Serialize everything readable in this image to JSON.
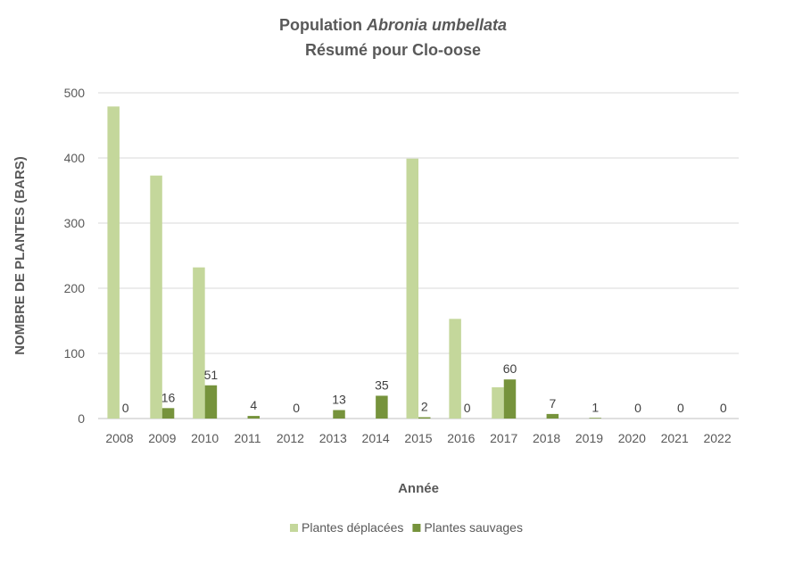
{
  "chart_data": {
    "type": "bar",
    "title_prefix": "Population ",
    "title_species": "Abronia umbellata",
    "subtitle": "Résumé pour Clo-oose",
    "xlabel": "Année",
    "ylabel": "NOMBRE DE PLANTES (BARS)",
    "ylim": [
      0,
      500
    ],
    "yticks": [
      0,
      100,
      200,
      300,
      400,
      500
    ],
    "grid": true,
    "legend_position": "bottom",
    "categories": [
      "2008",
      "2009",
      "2010",
      "2011",
      "2012",
      "2013",
      "2014",
      "2015",
      "2016",
      "2017",
      "2018",
      "2019",
      "2020",
      "2021",
      "2022"
    ],
    "series": [
      {
        "name": "Plantes déplacées",
        "color": "#c4d79b",
        "values": [
          479,
          373,
          232,
          0,
          0,
          0,
          0,
          399,
          153,
          48,
          0,
          0,
          0,
          0,
          0
        ],
        "labels_shown": false
      },
      {
        "name": "Plantes sauvages",
        "color": "#76933c",
        "values": [
          0,
          16,
          51,
          4,
          0,
          13,
          35,
          2,
          0,
          60,
          7,
          1,
          0,
          0,
          0
        ],
        "labels_shown": true
      }
    ]
  }
}
